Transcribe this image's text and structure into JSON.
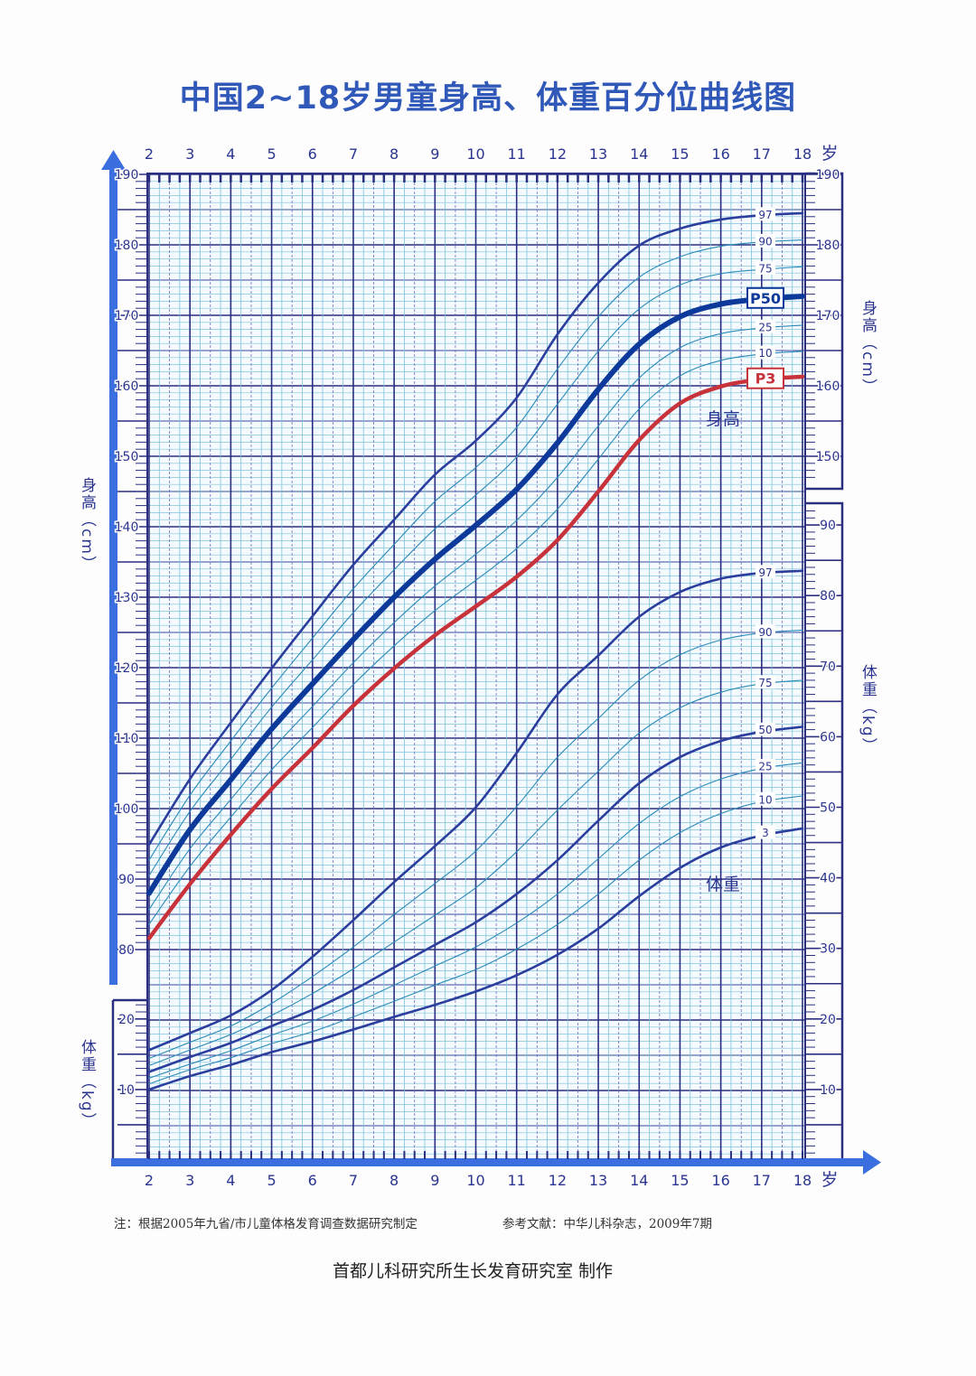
{
  "title": "中国2~18岁男童身高、体重百分位曲线图",
  "axis": {
    "age_unit": "岁",
    "height_label": "身高（cm）",
    "weight_label": "体重（kg）"
  },
  "notes": {
    "source": "注：根据2005年九省/市儿童体格发育调查数据研究制定",
    "reference": "参考文献：中华儿科杂志，2009年7期",
    "credit": "首都儿科研究所生长发育研究室 制作"
  },
  "colors": {
    "arrow": "#3b6fe0",
    "grid_major": "#2b2f7f",
    "grid_minor": "#7fc4dc",
    "outer_curve": "#2b3e9e",
    "inner_curve": "#2a8ab8",
    "p50_height": "#0d3a9a",
    "p3_height": "#c8323a"
  },
  "chart_data": {
    "type": "line",
    "x": [
      2,
      3,
      4,
      5,
      6,
      7,
      8,
      9,
      10,
      11,
      12,
      13,
      14,
      15,
      16,
      17,
      18
    ],
    "xlim": [
      2,
      18
    ],
    "x_ticks": [
      2,
      3,
      4,
      5,
      6,
      7,
      8,
      9,
      10,
      11,
      12,
      13,
      14,
      15,
      16,
      17,
      18
    ],
    "grid": true,
    "height": {
      "label": "身高",
      "unit": "cm",
      "ticks_left": [
        80,
        90,
        100,
        110,
        120,
        130,
        140,
        150,
        160,
        170,
        180,
        190
      ],
      "ticks_right": [
        150,
        160,
        170,
        180,
        190
      ],
      "series": [
        {
          "name": "97",
          "style": "outer",
          "values": [
            94.9,
            104.2,
            112.2,
            119.9,
            127.3,
            134.6,
            141.0,
            147.4,
            152.2,
            158.3,
            167.3,
            174.6,
            179.9,
            182.3,
            183.6,
            184.2,
            184.5
          ]
        },
        {
          "name": "90",
          "style": "inner",
          "values": [
            92.7,
            101.9,
            109.6,
            117.1,
            124.2,
            131.2,
            137.5,
            143.6,
            148.4,
            154.1,
            162.4,
            169.8,
            175.4,
            178.3,
            179.8,
            180.4,
            180.7
          ]
        },
        {
          "name": "75",
          "style": "inner",
          "values": [
            90.5,
            99.6,
            107.0,
            114.4,
            121.1,
            127.8,
            133.9,
            139.7,
            144.5,
            149.9,
            157.4,
            164.9,
            170.9,
            174.3,
            175.9,
            176.5,
            176.9
          ]
        },
        {
          "name": "P50",
          "style": "p50",
          "boxed": true,
          "values": [
            88.0,
            97.0,
            104.1,
            111.3,
            117.7,
            124.0,
            130.0,
            135.4,
            140.2,
            145.3,
            151.9,
            159.5,
            165.9,
            169.8,
            171.6,
            172.3,
            172.7
          ]
        },
        {
          "name": "25",
          "style": "inner",
          "values": [
            85.7,
            94.3,
            101.3,
            108.3,
            114.5,
            120.7,
            126.4,
            131.6,
            136.1,
            140.9,
            147.0,
            154.3,
            161.1,
            165.4,
            167.4,
            168.2,
            168.6
          ]
        },
        {
          "name": "10",
          "style": "inner",
          "values": [
            83.6,
            91.8,
            98.8,
            105.5,
            111.5,
            117.6,
            123.1,
            128.1,
            132.4,
            136.9,
            142.5,
            149.6,
            156.7,
            161.4,
            163.6,
            164.5,
            164.9
          ]
        },
        {
          "name": "P3",
          "style": "p3",
          "boxed": true,
          "values": [
            81.6,
            89.3,
            96.3,
            102.8,
            108.6,
            114.6,
            119.9,
            124.6,
            128.7,
            132.9,
            138.1,
            145.0,
            152.3,
            157.5,
            159.9,
            160.9,
            161.3
          ]
        }
      ]
    },
    "weight": {
      "label": "体重",
      "unit": "kg",
      "ticks_left": [
        10,
        20
      ],
      "ticks_right": [
        10,
        20,
        30,
        40,
        50,
        60,
        70,
        80,
        90
      ],
      "series": [
        {
          "name": "97",
          "style": "outer",
          "values": [
            15.6,
            18.0,
            20.5,
            24.1,
            28.8,
            34.0,
            39.4,
            44.5,
            50.0,
            57.7,
            66.0,
            71.5,
            77.0,
            80.5,
            82.4,
            83.2,
            83.5
          ]
        },
        {
          "name": "90",
          "style": "inner",
          "values": [
            14.4,
            16.7,
            19.0,
            22.2,
            26.0,
            30.2,
            34.8,
            39.2,
            43.8,
            50.1,
            57.1,
            62.6,
            68.0,
            71.6,
            73.7,
            74.7,
            75.1
          ]
        },
        {
          "name": "75",
          "style": "inner",
          "values": [
            13.4,
            15.6,
            17.8,
            20.5,
            23.6,
            27.1,
            30.9,
            34.7,
            38.6,
            43.7,
            49.6,
            55.1,
            60.5,
            64.1,
            66.3,
            67.5,
            68.0
          ]
        },
        {
          "name": "50",
          "style": "outer",
          "values": [
            12.5,
            14.6,
            16.6,
            19.0,
            21.3,
            24.1,
            27.3,
            30.5,
            33.7,
            37.7,
            42.5,
            48.1,
            53.4,
            57.1,
            59.4,
            60.7,
            61.4
          ]
        },
        {
          "name": "25",
          "style": "inner",
          "values": [
            11.6,
            13.6,
            15.5,
            17.7,
            19.7,
            22.1,
            24.8,
            27.5,
            30.2,
            33.6,
            37.7,
            42.7,
            47.7,
            51.5,
            54.0,
            55.5,
            56.3
          ]
        },
        {
          "name": "10",
          "style": "inner",
          "values": [
            10.8,
            12.8,
            14.5,
            16.5,
            18.2,
            20.3,
            22.5,
            24.8,
            27.0,
            29.9,
            33.4,
            37.7,
            42.5,
            46.4,
            49.1,
            50.8,
            51.6
          ]
        },
        {
          "name": "3",
          "style": "outer",
          "values": [
            10.0,
            11.9,
            13.5,
            15.3,
            16.8,
            18.5,
            20.3,
            22.0,
            23.9,
            26.2,
            29.1,
            32.8,
            37.4,
            41.4,
            44.3,
            46.0,
            47.0
          ]
        }
      ]
    }
  }
}
